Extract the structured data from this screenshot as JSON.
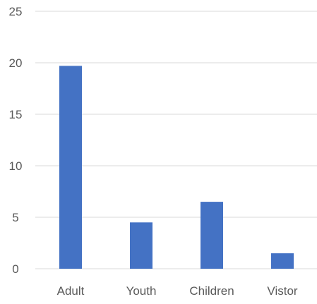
{
  "chart_data": {
    "type": "bar",
    "categories": [
      "Adult",
      "Youth",
      "Children",
      "Vistor"
    ],
    "values": [
      19.7,
      4.5,
      6.5,
      1.5
    ],
    "yticks": [
      "0",
      "5",
      "10",
      "15",
      "20",
      "25"
    ],
    "ylim": [
      0,
      25
    ],
    "grid": true,
    "bar_color": "#4472C4",
    "gridline_color": "#D9D9D9",
    "label_color": "#595959"
  }
}
